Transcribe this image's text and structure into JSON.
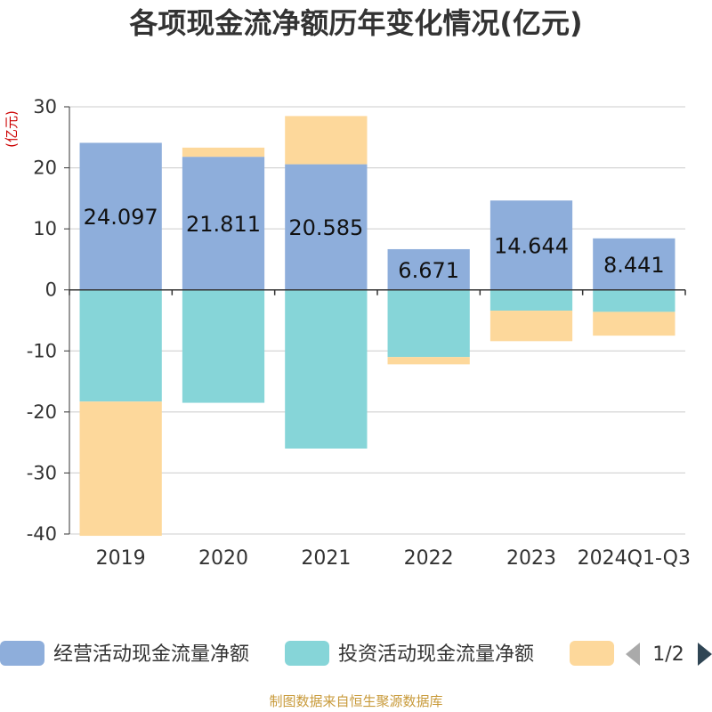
{
  "chart_data": {
    "type": "bar",
    "stacked": true,
    "title": "各项现金流净额历年变化情况(亿元)",
    "ylabel": "(亿元)",
    "ylim": [
      -40,
      30
    ],
    "yticks": [
      30,
      20,
      10,
      0,
      -10,
      -20,
      -30,
      -40
    ],
    "grid": true,
    "legend_position": "bottom",
    "categories": [
      "2019",
      "2020",
      "2021",
      "2022",
      "2023",
      "2024Q1-Q3"
    ],
    "series": [
      {
        "name": "经营活动现金流量净额",
        "color": "#8eaedb",
        "values": [
          24.097,
          21.811,
          20.585,
          6.671,
          14.644,
          8.441
        ],
        "show_labels": true
      },
      {
        "name": "投资活动现金流量净额",
        "color": "#86d5d8",
        "values": [
          -18.3,
          -18.5,
          -26.0,
          -11.0,
          -3.4,
          -3.6
        ],
        "show_labels": false
      },
      {
        "name": "",
        "color": "#fdd89b",
        "values": [
          -22.0,
          1.5,
          7.9,
          -1.2,
          -5.0,
          -3.9
        ],
        "show_labels": false
      }
    ]
  },
  "legend": {
    "page": "1/2"
  },
  "source": "制图数据来自恒生聚源数据库"
}
